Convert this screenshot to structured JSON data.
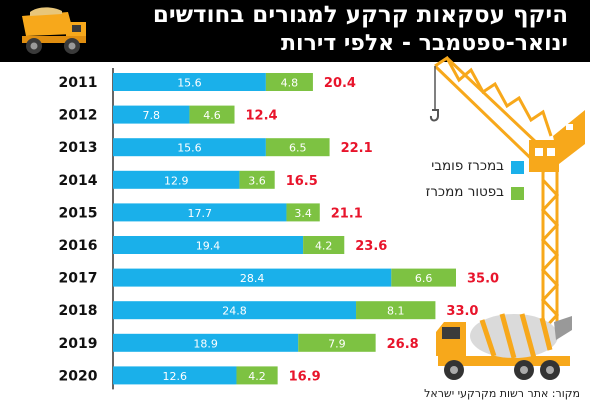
{
  "header": {
    "title_line1": "היקף עסקאות קרקע למגורים בחודשים",
    "title_line2": "ינואר-ספטמבר - אלפי דירות"
  },
  "legend": [
    {
      "label": "במכרז פומבי",
      "color": "#1AB0EA"
    },
    {
      "label": "בפטור ממכרז",
      "color": "#7DC242"
    }
  ],
  "source": "מקור: אתר רשות מקרקעי ישראל",
  "colors": {
    "public_tender": "#1AB0EA",
    "exempt": "#7DC242",
    "total_text": "#E8142B",
    "crane": "#F7A81B"
  },
  "chart_data": {
    "type": "bar",
    "orientation": "horizontal",
    "stacked": true,
    "categories": [
      "2011",
      "2012",
      "2013",
      "2014",
      "2015",
      "2016",
      "2017",
      "2018",
      "2019",
      "2020"
    ],
    "series": [
      {
        "name": "במכרז פומבי",
        "values": [
          15.6,
          7.8,
          15.6,
          12.9,
          17.7,
          19.4,
          28.4,
          24.8,
          18.9,
          12.6
        ]
      },
      {
        "name": "בפטור ממכרז",
        "values": [
          4.8,
          4.6,
          6.5,
          3.6,
          3.4,
          4.2,
          6.6,
          8.1,
          7.9,
          4.2
        ]
      }
    ],
    "totals": [
      20.4,
      12.4,
      22.1,
      16.5,
      21.1,
      23.6,
      35.0,
      33.0,
      26.8,
      16.9
    ],
    "total_labels": [
      "20.4",
      "12.4",
      "22.1",
      "16.5",
      "21.1",
      "23.6",
      "35.0",
      "33.0",
      "26.8",
      "16.9"
    ],
    "xlim": [
      0,
      35
    ],
    "legend_position": "right"
  }
}
